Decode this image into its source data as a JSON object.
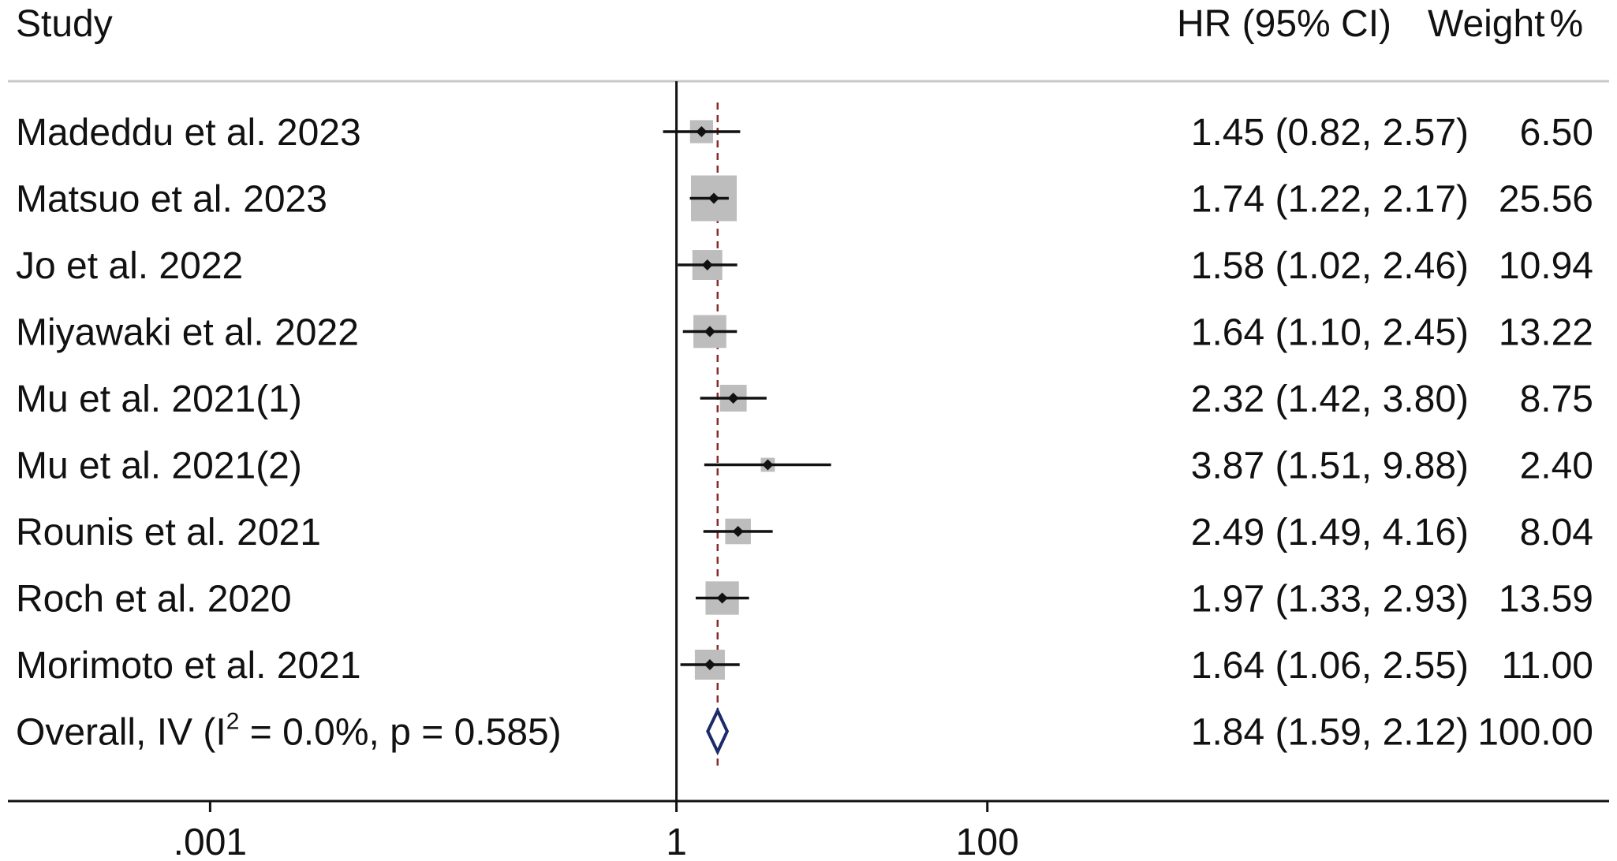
{
  "chart_data": {
    "type": "forest",
    "headers": {
      "study": "Study",
      "effect": "HR (95% CI)",
      "weight": "Weight"
    },
    "x_scale": "log",
    "x_ticks": [
      {
        "value": 0.001,
        "label": ".001"
      },
      {
        "value": 1,
        "label": "1"
      },
      {
        "value": 100,
        "label": "100"
      }
    ],
    "xlim": [
      5e-05,
      1000000
    ],
    "null_value": 1,
    "pooled_reference_line": 1.84,
    "studies": [
      {
        "label": "Madeddu et al. 2023",
        "hr": 1.45,
        "lower": 0.82,
        "upper": 2.57,
        "effect_text": "1.45 (0.82, 2.57)",
        "weight": 6.5,
        "weight_text": "6.50"
      },
      {
        "label": "Matsuo et al. 2023",
        "hr": 1.74,
        "lower": 1.22,
        "upper": 2.17,
        "effect_text": "1.74 (1.22, 2.17)",
        "weight": 25.56,
        "weight_text": "25.56"
      },
      {
        "label": "Jo et al. 2022",
        "hr": 1.58,
        "lower": 1.02,
        "upper": 2.46,
        "effect_text": "1.58 (1.02, 2.46)",
        "weight": 10.94,
        "weight_text": "10.94"
      },
      {
        "label": "Miyawaki et al. 2022",
        "hr": 1.64,
        "lower": 1.1,
        "upper": 2.45,
        "effect_text": "1.64 (1.10, 2.45)",
        "weight": 13.22,
        "weight_text": "13.22"
      },
      {
        "label": "Mu et al. 2021(1)",
        "hr": 2.32,
        "lower": 1.42,
        "upper": 3.8,
        "effect_text": "2.32 (1.42, 3.80)",
        "weight": 8.75,
        "weight_text": "8.75"
      },
      {
        "label": "Mu et al. 2021(2)",
        "hr": 3.87,
        "lower": 1.51,
        "upper": 9.88,
        "effect_text": "3.87 (1.51, 9.88)",
        "weight": 2.4,
        "weight_text": "2.40"
      },
      {
        "label": "Rounis et al. 2021",
        "hr": 2.49,
        "lower": 1.49,
        "upper": 4.16,
        "effect_text": "2.49 (1.49, 4.16)",
        "weight": 8.04,
        "weight_text": "8.04"
      },
      {
        "label": "Roch et al. 2020",
        "hr": 1.97,
        "lower": 1.33,
        "upper": 2.93,
        "effect_text": "1.97 (1.33, 2.93)",
        "weight": 13.59,
        "weight_text": "13.59"
      },
      {
        "label": "Morimoto et al. 2021",
        "hr": 1.64,
        "lower": 1.06,
        "upper": 2.55,
        "effect_text": "1.64 (1.06, 2.55)",
        "weight": 11.0,
        "weight_text": "11.00"
      }
    ],
    "overall": {
      "label_prefix": "Overall, IV (I",
      "label_sup": "2",
      "label_suffix": " = 0.0%, p = 0.585)",
      "hr": 1.84,
      "lower": 1.59,
      "upper": 2.12,
      "effect_text": "1.84 (1.59, 2.12)",
      "weight_text": "100.00"
    },
    "colors": {
      "text": "#111111",
      "box": "#bdbdbd",
      "ci_line": "#111111",
      "null_line": "#111111",
      "ref_line": "#8b2a2a",
      "diamond": "#1b2a6b",
      "header_rule": "#c8c8c8"
    }
  }
}
